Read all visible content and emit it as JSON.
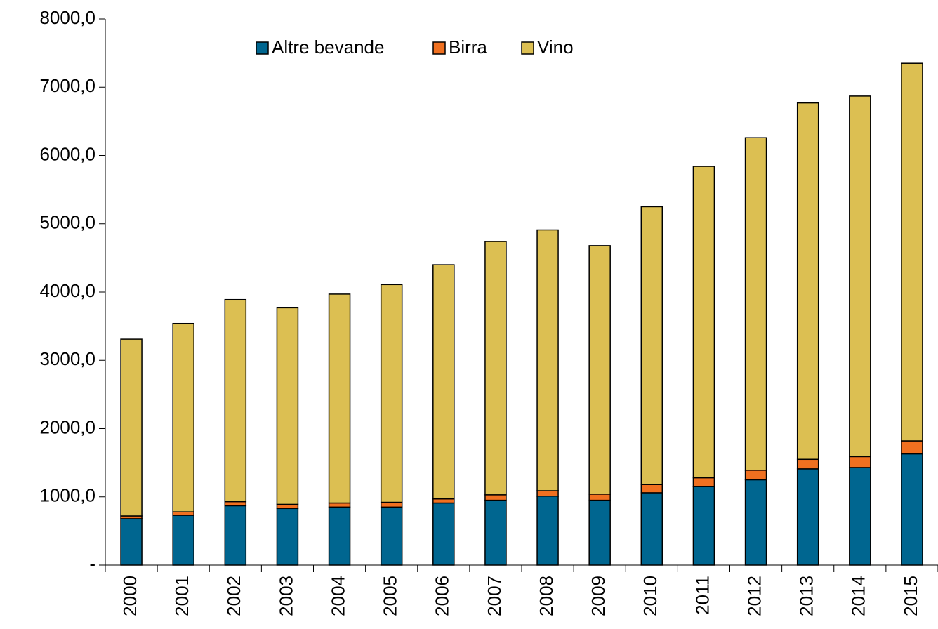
{
  "chart_data": {
    "type": "bar",
    "stacked": true,
    "categories": [
      "2000",
      "2001",
      "2002",
      "2003",
      "2004",
      "2005",
      "2006",
      "2007",
      "2008",
      "2009",
      "2010",
      "2011",
      "2012",
      "2013",
      "2014",
      "2015"
    ],
    "series": [
      {
        "name": "Altre bevande",
        "color": "#006690",
        "values": [
          680,
          730,
          870,
          830,
          850,
          850,
          910,
          950,
          1010,
          950,
          1060,
          1150,
          1250,
          1410,
          1430,
          1630
        ]
      },
      {
        "name": "Birra",
        "color": "#f07020",
        "values": [
          40,
          50,
          60,
          60,
          60,
          70,
          60,
          80,
          80,
          90,
          120,
          130,
          140,
          140,
          160,
          190
        ]
      },
      {
        "name": "Vino",
        "color": "#dcbf52",
        "values": [
          2590,
          2760,
          2960,
          2880,
          3060,
          3190,
          3430,
          3710,
          3820,
          3640,
          4070,
          4560,
          4870,
          5220,
          5280,
          5530
        ]
      }
    ],
    "ylim": [
      0,
      8000
    ],
    "yticks": [
      {
        "value": 0,
        "label": "-"
      },
      {
        "value": 1000,
        "label": "1000,0"
      },
      {
        "value": 2000,
        "label": "2000,0"
      },
      {
        "value": 3000,
        "label": "3000,0"
      },
      {
        "value": 4000,
        "label": "4000,0"
      },
      {
        "value": 5000,
        "label": "5000,0"
      },
      {
        "value": 6000,
        "label": "6000,0"
      },
      {
        "value": 7000,
        "label": "7000,0"
      },
      {
        "value": 8000,
        "label": "8000,0"
      }
    ],
    "grid": false,
    "legend": "top"
  }
}
